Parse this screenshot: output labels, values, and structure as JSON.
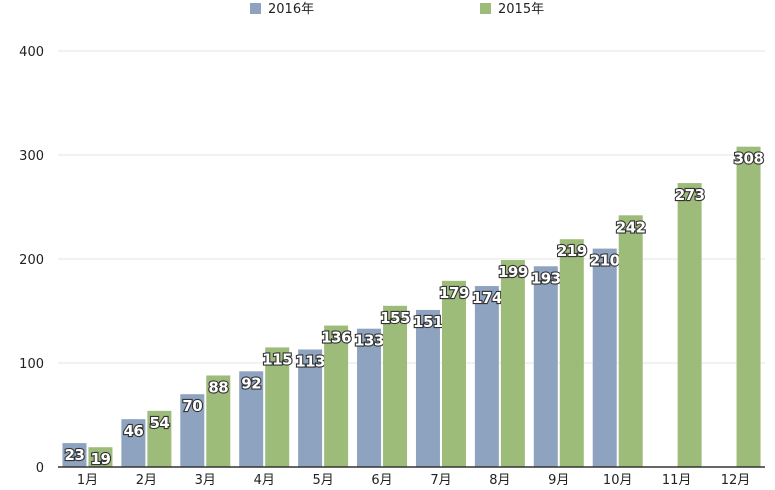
{
  "chart_data": {
    "type": "bar",
    "title": "",
    "xlabel": "",
    "ylabel": "",
    "ylim": [
      0,
      400
    ],
    "yticks": [
      "0",
      "100",
      "200",
      "300",
      "400"
    ],
    "categories": [
      "1月",
      "2月",
      "3月",
      "4月",
      "5月",
      "6月",
      "7月",
      "8月",
      "9月",
      "10月",
      "11月",
      "12月"
    ],
    "legend_position": "top",
    "grid": true,
    "series": [
      {
        "name": "2016年",
        "color": "#8ea3c0",
        "values": [
          23,
          46,
          70,
          92,
          113,
          133,
          151,
          174,
          193,
          210,
          null,
          null
        ]
      },
      {
        "name": "2015年",
        "color": "#9dbb79",
        "values": [
          19,
          54,
          88,
          115,
          136,
          155,
          179,
          199,
          219,
          242,
          273,
          308
        ]
      }
    ]
  }
}
